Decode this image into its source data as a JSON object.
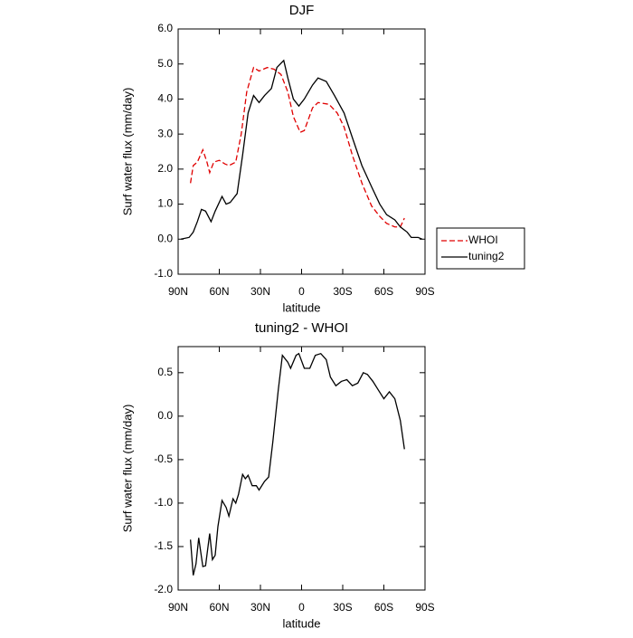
{
  "chart_data": [
    {
      "type": "line",
      "title": "DJF",
      "ylabel": "Surf water flux (mm/day)",
      "xlabel": "latitude",
      "xlim": [
        90,
        -90
      ],
      "xticks": [
        {
          "value": 90,
          "label": "90N"
        },
        {
          "value": 60,
          "label": "60N"
        },
        {
          "value": 30,
          "label": "30N"
        },
        0,
        {
          "value": -30,
          "label": "30S"
        },
        {
          "value": -60,
          "label": "60S"
        },
        {
          "value": -90,
          "label": "90S"
        }
      ],
      "ylim": [
        -1,
        6
      ],
      "yticks": [
        {
          "value": -1,
          "label": "-1.0"
        },
        {
          "value": 0,
          "label": "0.0"
        },
        {
          "value": 1,
          "label": "1.0"
        },
        {
          "value": 2,
          "label": "2.0"
        },
        {
          "value": 3,
          "label": "3.0"
        },
        {
          "value": 4,
          "label": "4.0"
        },
        {
          "value": 5,
          "label": "5.0"
        },
        {
          "value": 6,
          "label": "6.0"
        }
      ],
      "legend": "outside right",
      "series": [
        {
          "name": "WHOI",
          "color": "#e00000",
          "linestyle": "dashed",
          "x": [
            81,
            79,
            76,
            72,
            69,
            67,
            64,
            60,
            56,
            53,
            48,
            44,
            40,
            35,
            31,
            25,
            20,
            15,
            10,
            6,
            1,
            -2,
            -8,
            -12,
            -20,
            -26,
            -31,
            -37,
            -44,
            -51,
            -57,
            -62,
            -68,
            -72,
            -75
          ],
          "values": [
            1.6,
            2.1,
            2.2,
            2.55,
            2.2,
            1.9,
            2.2,
            2.25,
            2.15,
            2.1,
            2.2,
            3.0,
            4.2,
            4.9,
            4.8,
            4.9,
            4.85,
            4.7,
            4.2,
            3.5,
            3.05,
            3.1,
            3.75,
            3.9,
            3.85,
            3.6,
            3.2,
            2.4,
            1.6,
            0.95,
            0.65,
            0.45,
            0.35,
            0.35,
            0.6
          ]
        },
        {
          "name": "tuning2",
          "color": "#000000",
          "linestyle": "solid",
          "x": [
            88,
            82,
            79,
            76,
            73,
            70,
            66,
            63,
            58,
            55,
            52,
            47,
            43,
            39,
            35,
            31,
            27,
            22,
            18,
            13,
            10,
            6,
            2,
            -2,
            -8,
            -12,
            -18,
            -24,
            -31,
            -37,
            -44,
            -51,
            -57,
            -62,
            -68,
            -72,
            -77,
            -80,
            -85,
            -88
          ],
          "values": [
            0.0,
            0.05,
            0.2,
            0.5,
            0.85,
            0.8,
            0.5,
            0.8,
            1.22,
            1.0,
            1.05,
            1.3,
            2.4,
            3.6,
            4.1,
            3.9,
            4.1,
            4.3,
            4.9,
            5.1,
            4.6,
            4.0,
            3.8,
            4.0,
            4.4,
            4.6,
            4.5,
            4.1,
            3.6,
            2.9,
            2.1,
            1.5,
            1.0,
            0.7,
            0.55,
            0.35,
            0.2,
            0.05,
            0.05,
            0.0
          ]
        }
      ]
    },
    {
      "type": "line",
      "title": "tuning2 - WHOI",
      "ylabel": "Surf water flux (mm/day)",
      "xlabel": "latitude",
      "xlim": [
        90,
        -90
      ],
      "xticks": [
        {
          "value": 90,
          "label": "90N"
        },
        {
          "value": 60,
          "label": "60N"
        },
        {
          "value": 30,
          "label": "30N"
        },
        0,
        {
          "value": -30,
          "label": "30S"
        },
        {
          "value": -60,
          "label": "60S"
        },
        {
          "value": -90,
          "label": "90S"
        }
      ],
      "ylim": [
        -2,
        0.8
      ],
      "yticks": [
        {
          "value": -2,
          "label": "-2.0"
        },
        -1.5,
        {
          "value": -1,
          "label": "-1.0"
        },
        -0.5,
        {
          "value": 0,
          "label": "0.0"
        },
        0.5
      ],
      "series": [
        {
          "color": "#000000",
          "linestyle": "solid",
          "x": [
            81,
            79,
            77,
            75,
            72,
            70,
            67,
            65,
            63,
            61,
            58,
            55,
            53,
            50,
            48,
            46,
            43,
            41,
            39,
            36,
            33,
            31,
            27,
            24,
            21,
            17,
            14,
            10,
            8,
            4,
            2,
            -2,
            -6,
            -10,
            -14,
            -18,
            -21,
            -25,
            -29,
            -33,
            -37,
            -41,
            -45,
            -48,
            -52,
            -56,
            -60,
            -64,
            -68,
            -72,
            -75
          ],
          "values": [
            -1.42,
            -1.83,
            -1.7,
            -1.4,
            -1.73,
            -1.72,
            -1.35,
            -1.65,
            -1.6,
            -1.27,
            -0.97,
            -1.05,
            -1.15,
            -0.95,
            -1.0,
            -0.9,
            -0.67,
            -0.72,
            -0.68,
            -0.8,
            -0.8,
            -0.85,
            -0.75,
            -0.7,
            -0.3,
            0.3,
            0.7,
            0.62,
            0.55,
            0.7,
            0.72,
            0.55,
            0.55,
            0.7,
            0.72,
            0.65,
            0.45,
            0.35,
            0.4,
            0.42,
            0.35,
            0.38,
            0.5,
            0.48,
            0.4,
            0.3,
            0.2,
            0.28,
            0.2,
            -0.05,
            -0.38
          ]
        }
      ]
    }
  ]
}
